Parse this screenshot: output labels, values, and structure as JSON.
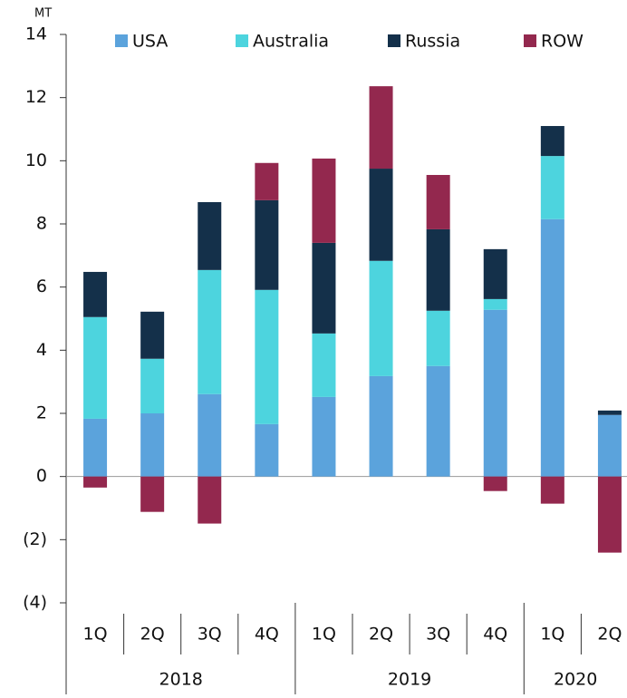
{
  "chart_data": {
    "type": "stacked_bar",
    "y_label": "MT",
    "categories": [
      "1Q",
      "2Q",
      "3Q",
      "4Q",
      "1Q",
      "2Q",
      "3Q",
      "4Q",
      "1Q",
      "2Q"
    ],
    "groups": [
      {
        "label": "2018",
        "count": 4
      },
      {
        "label": "2019",
        "count": 4
      },
      {
        "label": "2020",
        "count": 2
      }
    ],
    "series": [
      {
        "name": "USA",
        "color": "#5ba3dc",
        "values": [
          1.83,
          2.0,
          2.61,
          1.66,
          2.52,
          3.18,
          3.5,
          5.28,
          8.15,
          1.95
        ]
      },
      {
        "name": "Australia",
        "color": "#4dd4de",
        "values": [
          3.22,
          1.73,
          3.93,
          4.25,
          2.01,
          3.65,
          1.75,
          0.34,
          2.0,
          0
        ]
      },
      {
        "name": "Russia",
        "color": "#14304a",
        "values": [
          1.43,
          1.49,
          2.15,
          2.84,
          2.87,
          2.92,
          2.58,
          1.58,
          0.95,
          0.14
        ]
      },
      {
        "name": "ROW",
        "color": "#93284e",
        "values": [
          -0.35,
          -1.12,
          -1.49,
          1.18,
          2.67,
          2.61,
          1.72,
          -0.46,
          -0.86,
          -2.41
        ]
      }
    ],
    "ylim": [
      -4,
      14
    ],
    "yticks": [
      {
        "value": -4,
        "label": "(4)"
      },
      {
        "value": -2,
        "label": "(2)"
      },
      0,
      2,
      4,
      6,
      8,
      10,
      12,
      14
    ],
    "legend": "top"
  }
}
